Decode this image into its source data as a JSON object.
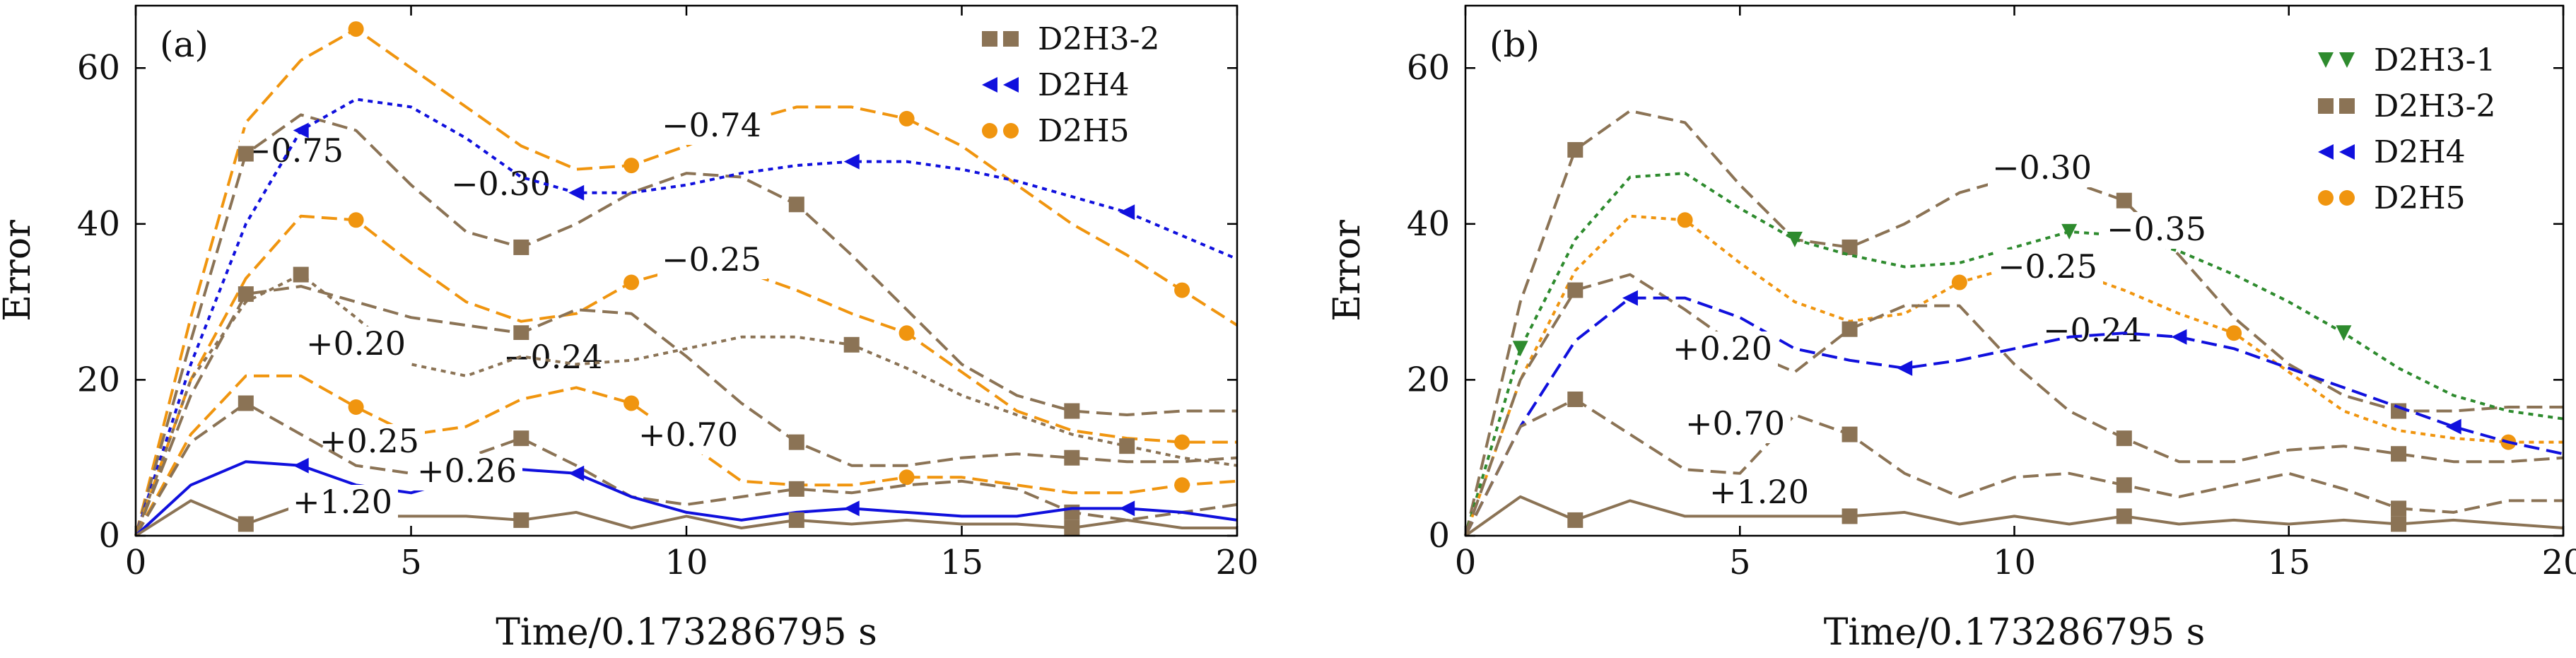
{
  "colors": {
    "D2H3-1": "#2e8b2e",
    "D2H3-2": "#8b7355",
    "D2H4": "#1010dd",
    "D2H5": "#f0950f"
  },
  "chart_data": [
    {
      "type": "line",
      "panel_label": "(a)",
      "xlabel": "Time/0.173286795 s",
      "ylabel": "Error",
      "xlim": [
        0,
        20
      ],
      "ylim": [
        0,
        68
      ],
      "xticks": [
        0,
        5,
        10,
        15,
        20
      ],
      "yticks": [
        0,
        20,
        40,
        60
      ],
      "grid": false,
      "legend_position": "top-right",
      "legend": [
        {
          "name": "D2H3-2",
          "marker": "square"
        },
        {
          "name": "D2H4",
          "marker": "left-triangle"
        },
        {
          "name": "D2H5",
          "marker": "circle"
        }
      ],
      "series": [
        {
          "name": "D2H5",
          "label": "−0.75",
          "style": "dashed",
          "x": [
            0,
            1,
            2,
            3,
            4,
            5,
            6,
            7,
            8,
            9,
            10,
            11,
            12,
            13,
            14,
            15,
            16,
            17,
            18,
            19,
            20
          ],
          "y": [
            0,
            28,
            53,
            61,
            65,
            60,
            55,
            50,
            47,
            47.5,
            50,
            53,
            55,
            55,
            53.5,
            50,
            45,
            40,
            36,
            31.5,
            27
          ],
          "marks": [
            4,
            9,
            14,
            19
          ]
        },
        {
          "name": "D2H3-2",
          "label": "−0.30",
          "style": "dashed",
          "x": [
            0,
            1,
            2,
            3,
            4,
            5,
            6,
            7,
            8,
            9,
            10,
            11,
            12,
            13,
            14,
            15,
            16,
            17,
            18,
            19,
            20
          ],
          "y": [
            0,
            25,
            49,
            54,
            52,
            45,
            39,
            37,
            40,
            44,
            46.5,
            46,
            42.5,
            36,
            29,
            22,
            18,
            16,
            15.5,
            16,
            16
          ],
          "marks": [
            2,
            7,
            12,
            17
          ]
        },
        {
          "name": "D2H4",
          "label": "−0.74",
          "style": "dotted",
          "x": [
            0,
            1,
            2,
            3,
            4,
            5,
            6,
            7,
            8,
            9,
            10,
            11,
            12,
            13,
            14,
            15,
            16,
            17,
            18,
            19,
            20
          ],
          "y": [
            0,
            22,
            40,
            52,
            56,
            55,
            51,
            46,
            44,
            44,
            45,
            46.5,
            47.5,
            48,
            48,
            47,
            45.5,
            43.5,
            41.5,
            38.5,
            35.5
          ],
          "marks": [
            3,
            8,
            13,
            18
          ]
        },
        {
          "name": "D2H5",
          "label": "−0.25",
          "style": "dashed",
          "x": [
            0,
            1,
            2,
            3,
            4,
            5,
            6,
            7,
            8,
            9,
            10,
            11,
            12,
            13,
            14,
            15,
            16,
            17,
            18,
            19,
            20
          ],
          "y": [
            0,
            20,
            33,
            41,
            40.5,
            35,
            30,
            27.5,
            28.5,
            32.5,
            34.5,
            34,
            31.5,
            28.5,
            26,
            21,
            16,
            13.5,
            12.5,
            12,
            12
          ],
          "marks": [
            4,
            9,
            14,
            19
          ]
        },
        {
          "name": "D2H3-2",
          "label": "−0.24",
          "style": "dashed",
          "x": [
            0,
            1,
            2,
            3,
            4,
            5,
            6,
            7,
            8,
            9,
            10,
            11,
            12,
            13,
            14,
            15,
            16,
            17,
            18,
            19,
            20
          ],
          "y": [
            0,
            18,
            31,
            32,
            30,
            28,
            27,
            26,
            29,
            28.5,
            23,
            17,
            12,
            9,
            9,
            10,
            10.5,
            10,
            9.5,
            9.5,
            10
          ],
          "marks": [
            2,
            7,
            12,
            17
          ]
        },
        {
          "name": "D2H3-2",
          "label": "+0.20",
          "style": "dotted",
          "x": [
            0,
            1,
            2,
            3,
            4,
            5,
            6,
            7,
            8,
            9,
            10,
            11,
            12,
            13,
            14,
            15,
            16,
            17,
            18,
            19,
            20
          ],
          "y": [
            0,
            20,
            30,
            33.5,
            28,
            22,
            20.5,
            23,
            22,
            22.5,
            24,
            25.5,
            25.5,
            24.5,
            21.5,
            18,
            15.5,
            13,
            11.5,
            10,
            9
          ],
          "marks": [
            3,
            13,
            18
          ]
        },
        {
          "name": "D2H5",
          "label": "+0.25",
          "style": "dashed",
          "x": [
            0,
            1,
            2,
            3,
            4,
            5,
            6,
            7,
            8,
            9,
            10,
            11,
            12,
            13,
            14,
            15,
            16,
            17,
            18,
            19,
            20
          ],
          "y": [
            0,
            13,
            20.5,
            20.5,
            16.5,
            13,
            14,
            17.5,
            19,
            17,
            12,
            7,
            6.5,
            6.5,
            7.5,
            7.5,
            6.5,
            5.5,
            5.5,
            6.5,
            7
          ],
          "marks": [
            4,
            9,
            14,
            19
          ]
        },
        {
          "name": "D2H3-2",
          "label": "+0.70",
          "style": "dashed",
          "x": [
            0,
            1,
            2,
            3,
            4,
            5,
            6,
            7,
            8,
            9,
            10,
            11,
            12,
            13,
            14,
            15,
            16,
            17,
            18,
            19,
            20
          ],
          "y": [
            0,
            12,
            17,
            13,
            9,
            8,
            10,
            12.5,
            9,
            5,
            4,
            5,
            6,
            5.5,
            6.5,
            7,
            6,
            3,
            2,
            3,
            4
          ],
          "marks": [
            2,
            7,
            12,
            17
          ]
        },
        {
          "name": "D2H4",
          "label": "+0.26",
          "style": "solid",
          "x": [
            0,
            1,
            2,
            3,
            4,
            5,
            6,
            7,
            8,
            9,
            10,
            11,
            12,
            13,
            14,
            15,
            16,
            17,
            18,
            19,
            20
          ],
          "y": [
            0,
            6.5,
            9.5,
            9,
            6.5,
            5.5,
            7.5,
            8.5,
            8,
            5,
            3,
            2,
            3,
            3.5,
            3,
            2.5,
            2.5,
            3.5,
            3.5,
            3,
            2
          ],
          "marks": [
            3,
            8,
            13,
            18
          ]
        },
        {
          "name": "D2H3-2",
          "label": "+1.20",
          "style": "solid",
          "x": [
            0,
            1,
            2,
            3,
            4,
            5,
            6,
            7,
            8,
            9,
            10,
            11,
            12,
            13,
            14,
            15,
            16,
            17,
            18,
            19,
            20
          ],
          "y": [
            0,
            4.5,
            1.5,
            4,
            2.5,
            2.5,
            2.5,
            2,
            3,
            1,
            2.5,
            1,
            2,
            1.5,
            2,
            1.5,
            1.5,
            1,
            2,
            1,
            1
          ],
          "marks": [
            2,
            7,
            12,
            17
          ]
        }
      ]
    },
    {
      "type": "line",
      "panel_label": "(b)",
      "xlabel": "Time/0.173286795 s",
      "ylabel": "Error",
      "xlim": [
        0,
        20
      ],
      "ylim": [
        0,
        68
      ],
      "xticks": [
        0,
        5,
        10,
        15,
        20
      ],
      "yticks": [
        0,
        20,
        40,
        60
      ],
      "grid": false,
      "legend_position": "top-right",
      "legend": [
        {
          "name": "D2H3-1",
          "marker": "down-triangle"
        },
        {
          "name": "D2H3-2",
          "marker": "square"
        },
        {
          "name": "D2H4",
          "marker": "left-triangle"
        },
        {
          "name": "D2H5",
          "marker": "circle"
        }
      ],
      "series": [
        {
          "name": "D2H3-2",
          "label": "−0.30",
          "style": "dashed",
          "x": [
            0,
            1,
            2,
            3,
            4,
            5,
            6,
            7,
            8,
            9,
            10,
            11,
            12,
            13,
            14,
            15,
            16,
            17,
            18,
            19,
            20
          ],
          "y": [
            0,
            30,
            49.5,
            54.5,
            53,
            45,
            38,
            37,
            40,
            44,
            46,
            45.5,
            43,
            36,
            28,
            22,
            18,
            16,
            16,
            16.5,
            16.5
          ],
          "marks": [
            2,
            7,
            12,
            17
          ]
        },
        {
          "name": "D2H3-1",
          "label": "−0.35",
          "style": "dotted",
          "x": [
            0,
            1,
            2,
            3,
            4,
            5,
            6,
            7,
            8,
            9,
            10,
            11,
            12,
            13,
            14,
            15,
            16,
            17,
            18,
            19,
            20
          ],
          "y": [
            0,
            24,
            38,
            46,
            46.5,
            42,
            38,
            36,
            34.5,
            35,
            37,
            39,
            38.5,
            36.5,
            33.5,
            30,
            26,
            21.5,
            18,
            16,
            15
          ],
          "marks": [
            1,
            6,
            11,
            16
          ]
        },
        {
          "name": "D2H5",
          "label": "−0.25",
          "style": "dotted",
          "x": [
            0,
            1,
            2,
            3,
            4,
            5,
            6,
            7,
            8,
            9,
            10,
            11,
            12,
            13,
            14,
            15,
            16,
            17,
            18,
            19,
            20
          ],
          "y": [
            0,
            20,
            34,
            41,
            40.5,
            35,
            30,
            27.5,
            28.5,
            32.5,
            34.5,
            34,
            31.5,
            28.5,
            26,
            21,
            16,
            13.5,
            12.5,
            12,
            12
          ],
          "marks": [
            4,
            9,
            14,
            19
          ]
        },
        {
          "name": "D2H3-2",
          "label": "−0.24",
          "style": "dashed",
          "x": [
            0,
            1,
            2,
            3,
            4,
            5,
            6,
            7,
            8,
            9,
            10,
            11,
            12,
            13,
            14,
            15,
            16,
            17,
            18,
            19,
            20
          ],
          "y": [
            0,
            20,
            31.5,
            33.5,
            29,
            24,
            21,
            26.5,
            29.5,
            29.5,
            22,
            16,
            12.5,
            9.5,
            9.5,
            11,
            11.5,
            10.5,
            9.5,
            9.5,
            10
          ],
          "marks": [
            2,
            7,
            12,
            17
          ]
        },
        {
          "name": "D2H4",
          "label": "+0.20",
          "style": "dashed",
          "x": [
            0,
            1,
            2,
            3,
            4,
            5,
            6,
            7,
            8,
            9,
            10,
            11,
            12,
            13,
            14,
            15,
            16,
            17,
            18,
            19,
            20
          ],
          "y": [
            0,
            14,
            25,
            30.5,
            30.5,
            28,
            24,
            22.5,
            21.5,
            22.5,
            24,
            25.5,
            26,
            25.5,
            24,
            21.5,
            19,
            16.5,
            14,
            12,
            10.5
          ],
          "marks": [
            3,
            8,
            13,
            18
          ]
        },
        {
          "name": "D2H3-2",
          "label": "+0.70",
          "style": "dashed",
          "x": [
            0,
            1,
            2,
            3,
            4,
            5,
            6,
            7,
            8,
            9,
            10,
            11,
            12,
            13,
            14,
            15,
            16,
            17,
            18,
            19,
            20
          ],
          "y": [
            0,
            14,
            17.5,
            13,
            8.5,
            8,
            15.5,
            13,
            8,
            5,
            7.5,
            8,
            6.5,
            5,
            6.5,
            8,
            6,
            3.5,
            3,
            4.5,
            4.5
          ],
          "marks": [
            2,
            7,
            12,
            17
          ]
        },
        {
          "name": "D2H3-2",
          "label": "+1.20",
          "style": "solid",
          "x": [
            0,
            1,
            2,
            3,
            4,
            5,
            6,
            7,
            8,
            9,
            10,
            11,
            12,
            13,
            14,
            15,
            16,
            17,
            18,
            19,
            20
          ],
          "y": [
            0,
            5,
            2,
            4.5,
            2.5,
            2.5,
            2.5,
            2.5,
            3,
            1.5,
            2.5,
            1.5,
            2.5,
            1.5,
            2,
            1.5,
            2,
            1.5,
            2,
            1.5,
            1
          ],
          "marks": [
            2,
            7,
            12,
            17
          ]
        }
      ]
    }
  ]
}
